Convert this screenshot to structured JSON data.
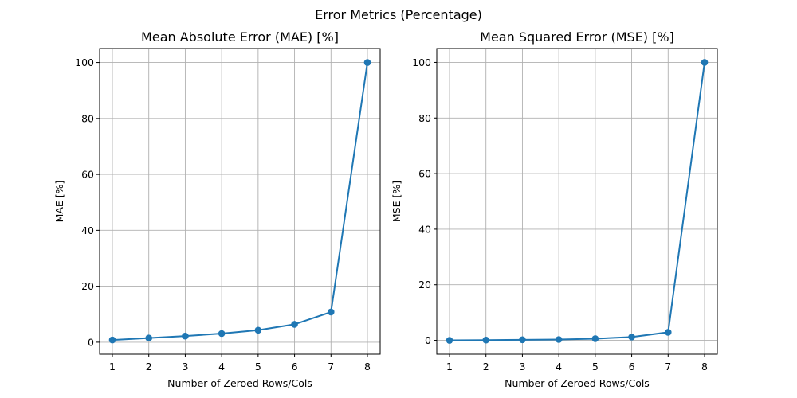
{
  "figure": {
    "suptitle": "Error Metrics (Percentage)"
  },
  "chart_data": [
    {
      "type": "line",
      "title": "Mean Absolute Error (MAE) [%]",
      "xlabel": "Number of Zeroed Rows/Cols",
      "ylabel": "MAE [%]",
      "x": [
        1,
        2,
        3,
        4,
        5,
        6,
        7,
        8
      ],
      "series": [
        {
          "values": [
            0.8,
            1.5,
            2.2,
            3.1,
            4.3,
            6.4,
            10.8,
            100.0
          ],
          "color": "#1f77b4",
          "marker": "circle"
        }
      ],
      "xlim": [
        0.65,
        8.35
      ],
      "ylim": [
        -4.3,
        105
      ],
      "xticks": [
        1,
        2,
        3,
        4,
        5,
        6,
        7,
        8
      ],
      "yticks": [
        0,
        20,
        40,
        60,
        80,
        100
      ],
      "grid": true
    },
    {
      "type": "line",
      "title": "Mean Squared Error (MSE) [%]",
      "xlabel": "Number of Zeroed Rows/Cols",
      "ylabel": "MSE [%]",
      "x": [
        1,
        2,
        3,
        4,
        5,
        6,
        7,
        8
      ],
      "series": [
        {
          "values": [
            0.0,
            0.1,
            0.2,
            0.3,
            0.6,
            1.2,
            2.9,
            100.0
          ],
          "color": "#1f77b4",
          "marker": "circle"
        }
      ],
      "xlim": [
        0.65,
        8.35
      ],
      "ylim": [
        -5.0,
        105
      ],
      "xticks": [
        1,
        2,
        3,
        4,
        5,
        6,
        7,
        8
      ],
      "yticks": [
        0,
        20,
        40,
        60,
        80,
        100
      ],
      "grid": true
    }
  ]
}
